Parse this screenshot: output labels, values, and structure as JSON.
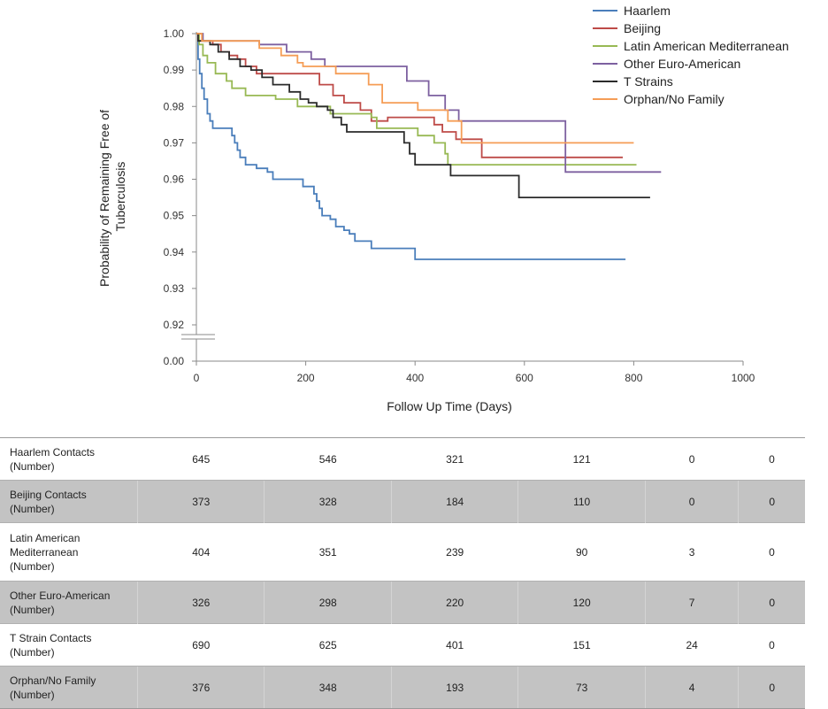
{
  "chart_data": {
    "type": "line",
    "title": "",
    "xlabel": "Follow Up Time  (Days)",
    "ylabel_lines": [
      "Probability of Remaining Free of",
      "Tuberculosis"
    ],
    "xlim": [
      0,
      1000
    ],
    "ylim": [
      0.92,
      1.0
    ],
    "axis_break": true,
    "x_ticks": [
      "0",
      "200",
      "400",
      "600",
      "800",
      "1000"
    ],
    "y_ticks": [
      "1.00",
      "0.99",
      "0.98",
      "0.97",
      "0.96",
      "0.95",
      "0.94",
      "0.93",
      "0.92",
      "0.00"
    ],
    "grid": false,
    "legend_position": "top-right",
    "series": [
      {
        "name": "Haarlem",
        "color": "#4a7ebb",
        "points": [
          [
            0,
            1.0
          ],
          [
            3,
            0.993
          ],
          [
            6,
            0.989
          ],
          [
            10,
            0.985
          ],
          [
            14,
            0.982
          ],
          [
            20,
            0.978
          ],
          [
            25,
            0.976
          ],
          [
            30,
            0.974
          ],
          [
            60,
            0.974
          ],
          [
            65,
            0.972
          ],
          [
            70,
            0.97
          ],
          [
            75,
            0.968
          ],
          [
            80,
            0.966
          ],
          [
            90,
            0.964
          ],
          [
            110,
            0.963
          ],
          [
            130,
            0.962
          ],
          [
            140,
            0.96
          ],
          [
            190,
            0.96
          ],
          [
            195,
            0.958
          ],
          [
            210,
            0.958
          ],
          [
            215,
            0.956
          ],
          [
            220,
            0.954
          ],
          [
            225,
            0.952
          ],
          [
            230,
            0.95
          ],
          [
            245,
            0.949
          ],
          [
            255,
            0.947
          ],
          [
            270,
            0.946
          ],
          [
            280,
            0.945
          ],
          [
            290,
            0.943
          ],
          [
            320,
            0.941
          ],
          [
            340,
            0.941
          ],
          [
            400,
            0.938
          ],
          [
            785,
            0.938
          ]
        ]
      },
      {
        "name": "Beijing",
        "color": "#be4b48",
        "points": [
          [
            0,
            1.0
          ],
          [
            5,
            0.998
          ],
          [
            30,
            0.997
          ],
          [
            45,
            0.995
          ],
          [
            60,
            0.994
          ],
          [
            75,
            0.993
          ],
          [
            90,
            0.991
          ],
          [
            110,
            0.989
          ],
          [
            220,
            0.989
          ],
          [
            225,
            0.986
          ],
          [
            250,
            0.983
          ],
          [
            270,
            0.981
          ],
          [
            300,
            0.979
          ],
          [
            320,
            0.976
          ],
          [
            345,
            0.976
          ],
          [
            350,
            0.977
          ],
          [
            430,
            0.977
          ],
          [
            435,
            0.975
          ],
          [
            450,
            0.973
          ],
          [
            470,
            0.973
          ],
          [
            475,
            0.971
          ],
          [
            520,
            0.971
          ],
          [
            522,
            0.966
          ],
          [
            780,
            0.966
          ]
        ]
      },
      {
        "name": "Latin American Mediterranean",
        "color": "#98b954",
        "points": [
          [
            0,
            1.0
          ],
          [
            5,
            0.997
          ],
          [
            12,
            0.994
          ],
          [
            20,
            0.992
          ],
          [
            35,
            0.989
          ],
          [
            55,
            0.987
          ],
          [
            65,
            0.985
          ],
          [
            90,
            0.983
          ],
          [
            140,
            0.983
          ],
          [
            145,
            0.982
          ],
          [
            180,
            0.982
          ],
          [
            185,
            0.98
          ],
          [
            240,
            0.98
          ],
          [
            245,
            0.978
          ],
          [
            320,
            0.977
          ],
          [
            330,
            0.974
          ],
          [
            400,
            0.974
          ],
          [
            405,
            0.972
          ],
          [
            430,
            0.972
          ],
          [
            435,
            0.97
          ],
          [
            450,
            0.97
          ],
          [
            455,
            0.967
          ],
          [
            460,
            0.964
          ],
          [
            805,
            0.964
          ]
        ]
      },
      {
        "name": "Other Euro-American",
        "color": "#7d60a0",
        "points": [
          [
            0,
            1.0
          ],
          [
            12,
            0.998
          ],
          [
            110,
            0.998
          ],
          [
            115,
            0.997
          ],
          [
            160,
            0.997
          ],
          [
            165,
            0.995
          ],
          [
            205,
            0.995
          ],
          [
            210,
            0.993
          ],
          [
            230,
            0.993
          ],
          [
            235,
            0.991
          ],
          [
            380,
            0.991
          ],
          [
            385,
            0.987
          ],
          [
            420,
            0.987
          ],
          [
            425,
            0.983
          ],
          [
            450,
            0.983
          ],
          [
            455,
            0.979
          ],
          [
            475,
            0.979
          ],
          [
            480,
            0.976
          ],
          [
            670,
            0.976
          ],
          [
            675,
            0.962
          ],
          [
            850,
            0.962
          ]
        ]
      },
      {
        "name": "T Strains",
        "color": "#2b2b2b",
        "points": [
          [
            0,
            1.0
          ],
          [
            3,
            0.998
          ],
          [
            25,
            0.997
          ],
          [
            40,
            0.995
          ],
          [
            60,
            0.993
          ],
          [
            80,
            0.991
          ],
          [
            100,
            0.99
          ],
          [
            120,
            0.988
          ],
          [
            140,
            0.986
          ],
          [
            170,
            0.984
          ],
          [
            190,
            0.982
          ],
          [
            205,
            0.981
          ],
          [
            220,
            0.98
          ],
          [
            240,
            0.979
          ],
          [
            250,
            0.977
          ],
          [
            265,
            0.975
          ],
          [
            275,
            0.973
          ],
          [
            320,
            0.973
          ],
          [
            345,
            0.973
          ],
          [
            380,
            0.97
          ],
          [
            390,
            0.967
          ],
          [
            400,
            0.964
          ],
          [
            460,
            0.964
          ],
          [
            465,
            0.961
          ],
          [
            585,
            0.961
          ],
          [
            590,
            0.955
          ],
          [
            830,
            0.955
          ]
        ]
      },
      {
        "name": "Orphan/No Family",
        "color": "#f59d56",
        "points": [
          [
            0,
            1.0
          ],
          [
            10,
            0.998
          ],
          [
            110,
            0.998
          ],
          [
            115,
            0.996
          ],
          [
            150,
            0.996
          ],
          [
            155,
            0.994
          ],
          [
            185,
            0.992
          ],
          [
            195,
            0.991
          ],
          [
            250,
            0.991
          ],
          [
            255,
            0.989
          ],
          [
            310,
            0.989
          ],
          [
            315,
            0.986
          ],
          [
            335,
            0.986
          ],
          [
            340,
            0.981
          ],
          [
            400,
            0.981
          ],
          [
            405,
            0.979
          ],
          [
            455,
            0.979
          ],
          [
            460,
            0.976
          ],
          [
            480,
            0.976
          ],
          [
            485,
            0.97
          ],
          [
            800,
            0.97
          ]
        ]
      }
    ]
  },
  "table": {
    "rows": [
      {
        "label_lines": [
          "Haarlem Contacts",
          "(Number)"
        ],
        "values": [
          "645",
          "546",
          "321",
          "121",
          "0",
          "0"
        ],
        "shaded": false
      },
      {
        "label_lines": [
          "Beijing Contacts",
          "(Number)"
        ],
        "values": [
          "373",
          "328",
          "184",
          "110",
          "0",
          "0"
        ],
        "shaded": true
      },
      {
        "label_lines": [
          "Latin American",
          "Mediterranean",
          "(Number)"
        ],
        "values": [
          "404",
          "351",
          "239",
          "90",
          "3",
          "0"
        ],
        "shaded": false
      },
      {
        "label_lines": [
          "Other Euro-American",
          "(Number)"
        ],
        "values": [
          "326",
          "298",
          "220",
          "120",
          "7",
          "0"
        ],
        "shaded": true
      },
      {
        "label_lines": [
          "T Strain Contacts",
          "(Number)"
        ],
        "values": [
          "690",
          "625",
          "401",
          "151",
          "24",
          "0"
        ],
        "shaded": false
      },
      {
        "label_lines": [
          "Orphan/No Family",
          "(Number)"
        ],
        "values": [
          "376",
          "348",
          "193",
          "73",
          "4",
          "0"
        ],
        "shaded": true
      }
    ]
  }
}
